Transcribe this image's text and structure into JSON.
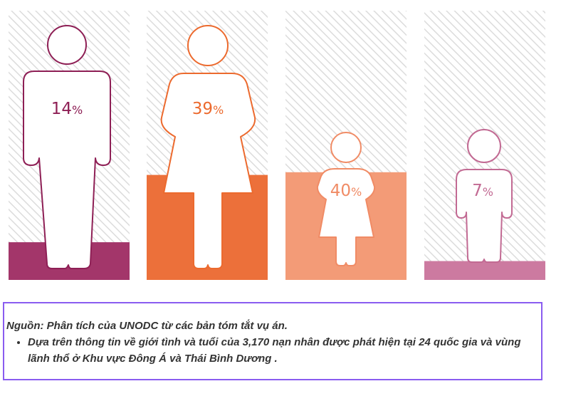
{
  "chart_data": {
    "type": "pictogram-bar",
    "unit": "%",
    "series": [
      {
        "icon": "man-icon",
        "value": 14,
        "label": "14",
        "color": "#a3366a",
        "outline": "#8e1f55"
      },
      {
        "icon": "woman-icon",
        "value": 39,
        "label": "39",
        "color": "#ec703a",
        "outline": "#ec6a2e"
      },
      {
        "icon": "girl-icon",
        "value": 40,
        "label": "40",
        "color": "#f39b77",
        "outline": "#f08b65"
      },
      {
        "icon": "boy-icon",
        "value": 7,
        "label": "7",
        "color": "#cc7aa0",
        "outline": "#c26a93"
      }
    ],
    "ylim": [
      0,
      100
    ]
  },
  "note": {
    "source": "Nguồn: Phân tích của UNODC từ các bản tóm tắt vụ án.",
    "bullets": [
      "Dựa trên thông tin về giới tình và tuổi của 3,170 nạn nhân được phát hiện tại 24 quốc gia và vùng lãnh thổ ở Khu vực Đông Á và Thái Bình Dương ."
    ]
  }
}
